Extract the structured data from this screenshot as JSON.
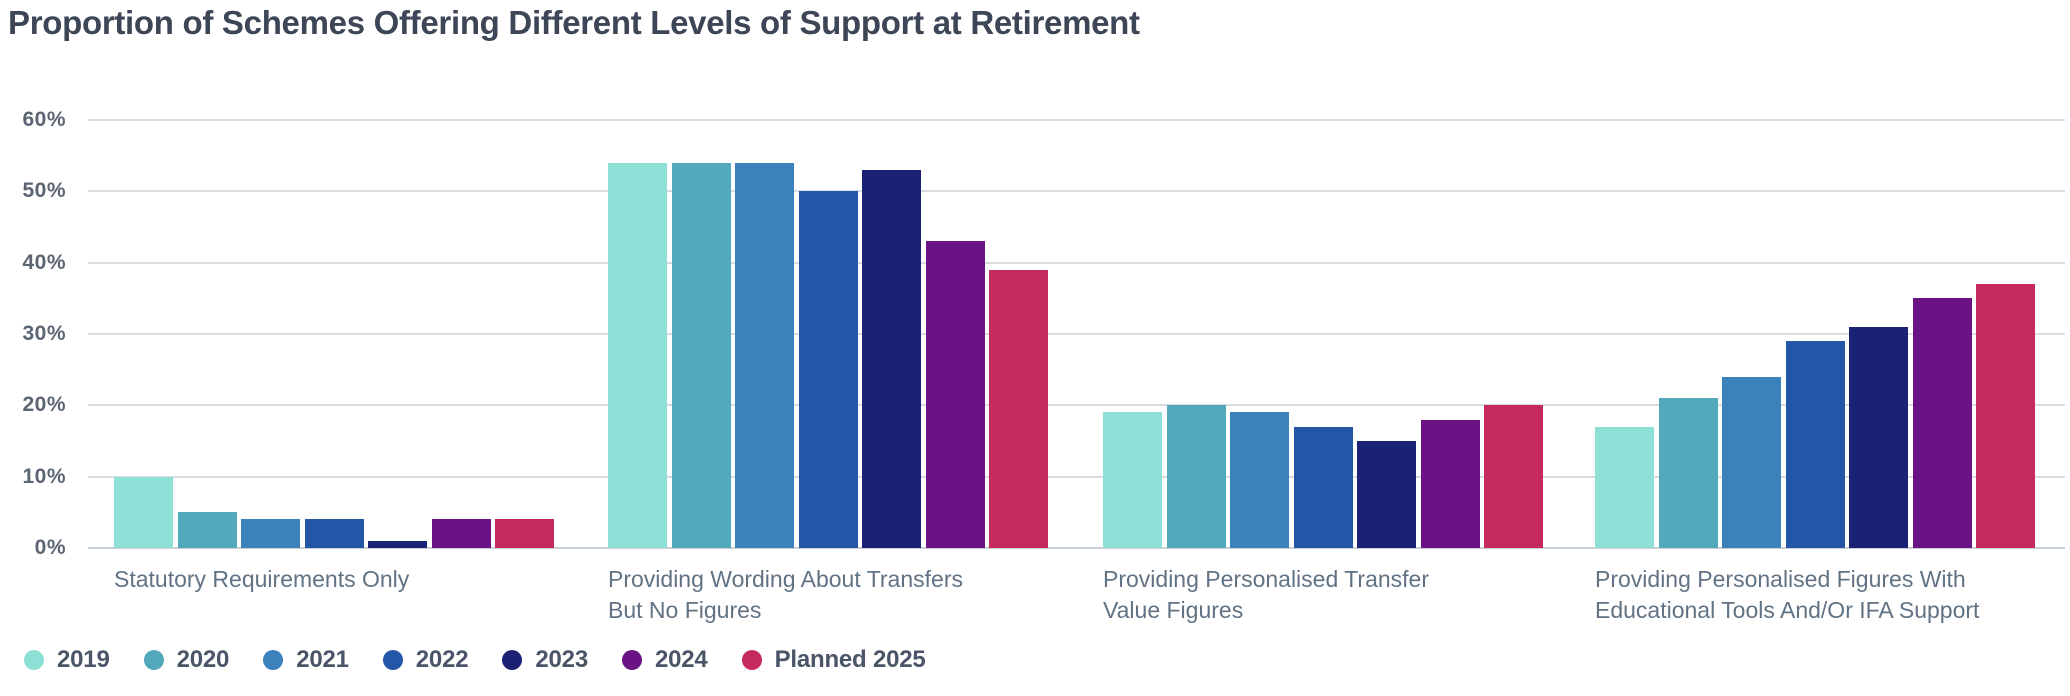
{
  "title": "Proportion of Schemes Offering Different Levels of Support at Retirement",
  "colors": {
    "title": "#3d4656",
    "axis_tick": "#5b6573",
    "category_label": "#607284",
    "legend_label": "#4a5568",
    "gridline": "#d8dde3",
    "background": "#ffffff"
  },
  "chart_data": {
    "type": "bar",
    "title": "Proportion of Schemes Offering Different Levels of Support at Retirement",
    "categories": [
      "Statutory Requirements Only",
      "Providing Wording About Transfers\nBut No Figures",
      "Providing Personalised Transfer\nValue Figures",
      "Providing Personalised Figures With\nEducational Tools And/Or IFA Support"
    ],
    "series": [
      {
        "name": "2019",
        "color": "#8de0d6",
        "values": [
          10,
          54,
          19,
          17
        ]
      },
      {
        "name": "2020",
        "color": "#52a9bc",
        "values": [
          5,
          54,
          20,
          21
        ]
      },
      {
        "name": "2021",
        "color": "#3b82bd",
        "values": [
          4,
          54,
          19,
          24
        ]
      },
      {
        "name": "2022",
        "color": "#2456a8",
        "values": [
          4,
          50,
          17,
          29
        ]
      },
      {
        "name": "2023",
        "color": "#1b2175",
        "values": [
          1,
          53,
          15,
          31
        ]
      },
      {
        "name": "2024",
        "color": "#6b1385",
        "values": [
          4,
          43,
          18,
          35
        ]
      },
      {
        "name": "Planned 2025",
        "color": "#c42a5c",
        "values": [
          4,
          39,
          20,
          37
        ]
      }
    ],
    "xlabel": "",
    "ylabel": "",
    "y_ticks": [
      "0%",
      "10%",
      "20%",
      "30%",
      "40%",
      "50%",
      "60%"
    ],
    "y_tick_values": [
      0,
      10,
      20,
      30,
      40,
      50,
      60
    ],
    "ylim": [
      0,
      60
    ],
    "grid": true,
    "legend_position": "bottom-left"
  }
}
